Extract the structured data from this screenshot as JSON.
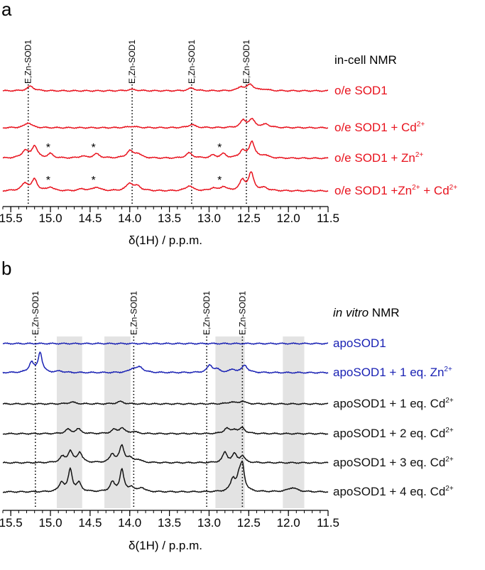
{
  "chart_data": [
    {
      "panel": "a",
      "type": "line",
      "title": "in-cell NMR",
      "xlabel": "δ(1H) / p.p.m.",
      "xlim": [
        15.6,
        11.5
      ],
      "xticks": [
        "15.5",
        "15.0",
        "14.5",
        "14.0",
        "13.5",
        "13.0",
        "12.5",
        "12.0",
        "11.5"
      ],
      "reference_label": "E,Zn-SOD1",
      "reference_lines": [
        15.28,
        13.97,
        13.22,
        12.53
      ],
      "asterisk_marker": "*",
      "asterisks": [
        {
          "trace": 2,
          "x": 15.02
        },
        {
          "trace": 2,
          "x": 14.45
        },
        {
          "trace": 2,
          "x": 12.86
        },
        {
          "trace": 3,
          "x": 15.02
        },
        {
          "trace": 3,
          "x": 14.45
        },
        {
          "trace": 3,
          "x": 12.86
        }
      ],
      "series": [
        {
          "name": "o/e SOD1",
          "label_main": "o/e SOD1",
          "label_tail": "",
          "ion1": "",
          "charge1": "",
          "ion2": "",
          "charge2": "",
          "color": "#e8121d",
          "peaks": [
            [
              15.25,
              0.5,
              0.05
            ],
            [
              13.97,
              0.15,
              0.07
            ],
            [
              13.22,
              0.3,
              0.05
            ],
            [
              12.6,
              0.4,
              0.04
            ],
            [
              12.48,
              0.7,
              0.05
            ],
            [
              12.3,
              0.15,
              0.05
            ]
          ]
        },
        {
          "name": "o/e SOD1 + Cd2+",
          "label_main": "o/e SOD1 + Cd",
          "label_tail": "",
          "ion1": "",
          "charge1": "2+",
          "ion2": "",
          "charge2": "",
          "color": "#e8121d",
          "peaks": [
            [
              15.28,
              0.55,
              0.05
            ],
            [
              13.97,
              0.15,
              0.07
            ],
            [
              13.22,
              0.35,
              0.05
            ],
            [
              12.57,
              0.75,
              0.04
            ],
            [
              12.46,
              0.85,
              0.05
            ],
            [
              12.28,
              0.35,
              0.05
            ]
          ]
        },
        {
          "name": "o/e SOD1 + Zn2+",
          "label_main": "o/e SOD1 + Zn",
          "label_tail": "",
          "ion1": "",
          "charge1": "2+",
          "ion2": "",
          "charge2": "",
          "color": "#e8121d",
          "peaks": [
            [
              15.32,
              0.8,
              0.05
            ],
            [
              15.2,
              1.3,
              0.04
            ],
            [
              15.0,
              0.45,
              0.04
            ],
            [
              14.6,
              0.2,
              0.05
            ],
            [
              14.42,
              0.45,
              0.05
            ],
            [
              14.0,
              0.75,
              0.05
            ],
            [
              13.9,
              0.45,
              0.05
            ],
            [
              13.25,
              0.55,
              0.05
            ],
            [
              12.95,
              0.3,
              0.04
            ],
            [
              12.82,
              0.45,
              0.04
            ],
            [
              12.58,
              0.8,
              0.04
            ],
            [
              12.46,
              1.8,
              0.04
            ],
            [
              12.3,
              0.3,
              0.05
            ]
          ]
        },
        {
          "name": "o/e SOD1 +Zn2+ + Cd2+",
          "label_main": "o/e SOD1 +Zn",
          "label_tail": " + Cd",
          "ion1": "",
          "charge1": "2+",
          "ion2": "",
          "charge2": "2+",
          "color": "#e8121d",
          "peaks": [
            [
              15.32,
              0.8,
              0.05
            ],
            [
              15.2,
              1.2,
              0.04
            ],
            [
              15.0,
              0.4,
              0.04
            ],
            [
              14.6,
              0.2,
              0.05
            ],
            [
              14.42,
              0.4,
              0.05
            ],
            [
              14.0,
              0.8,
              0.05
            ],
            [
              13.9,
              0.45,
              0.05
            ],
            [
              13.25,
              0.55,
              0.05
            ],
            [
              12.95,
              0.3,
              0.04
            ],
            [
              12.82,
              0.45,
              0.04
            ],
            [
              12.58,
              1.1,
              0.04
            ],
            [
              12.47,
              1.9,
              0.04
            ],
            [
              12.3,
              0.3,
              0.05
            ]
          ]
        }
      ]
    },
    {
      "panel": "b",
      "type": "line",
      "title": "in vitro NMR",
      "title_italic": "in vitro",
      "title_rest": " NMR",
      "xlabel": "δ(1H) / p.p.m.",
      "xlim": [
        15.6,
        11.5
      ],
      "xticks": [
        "15.5",
        "15.0",
        "14.5",
        "14.0",
        "13.5",
        "13.0",
        "12.5",
        "12.0",
        "11.5"
      ],
      "reference_label": "E,Zn-SOD1",
      "reference_lines": [
        15.19,
        13.95,
        13.03,
        12.58
      ],
      "shaded_regions": [
        [
          14.92,
          14.6
        ],
        [
          14.32,
          13.99
        ],
        [
          12.92,
          12.55
        ],
        [
          12.07,
          11.8
        ]
      ],
      "series": [
        {
          "name": "apoSOD1",
          "label_main": "apoSOD1",
          "label_tail": "",
          "ion1": "",
          "charge1": "",
          "ion2": "",
          "charge2": "",
          "color": "#1a22b4",
          "peaks": []
        },
        {
          "name": "apoSOD1 + 1 eq. Zn2+",
          "label_main": "apoSOD1 + 1 eq. Zn",
          "label_tail": "",
          "ion1": "",
          "charge1": "2+",
          "ion2": "",
          "charge2": "",
          "color": "#1a22b4",
          "peaks": [
            [
              15.24,
              1.1,
              0.035
            ],
            [
              15.13,
              2.2,
              0.03
            ],
            [
              14.88,
              0.15,
              0.05
            ],
            [
              13.96,
              0.4,
              0.05
            ],
            [
              13.87,
              0.55,
              0.05
            ],
            [
              12.99,
              0.8,
              0.04
            ],
            [
              12.9,
              0.3,
              0.04
            ],
            [
              12.7,
              0.3,
              0.05
            ],
            [
              12.55,
              0.8,
              0.04
            ]
          ]
        },
        {
          "name": "apoSOD1 + 1 eq. Cd2+",
          "label_main": "apoSOD1 + 1 eq. Cd",
          "label_tail": "",
          "ion1": "",
          "charge1": "2+",
          "ion2": "",
          "charge2": "",
          "color": "#111111",
          "peaks": [
            [
              14.73,
              0.2,
              0.05
            ],
            [
              14.12,
              0.25,
              0.05
            ],
            [
              12.72,
              0.2,
              0.05
            ],
            [
              12.58,
              0.3,
              0.04
            ]
          ]
        },
        {
          "name": "apoSOD1 + 2 eq. Cd2+",
          "label_main": "apoSOD1 + 2 eq. Cd",
          "label_tail": "",
          "ion1": "",
          "charge1": "2+",
          "ion2": "",
          "charge2": "",
          "color": "#111111",
          "peaks": [
            [
              14.78,
              0.45,
              0.04
            ],
            [
              14.65,
              0.5,
              0.04
            ],
            [
              14.2,
              0.4,
              0.04
            ],
            [
              14.1,
              0.6,
              0.04
            ],
            [
              13.95,
              0.2,
              0.05
            ],
            [
              12.78,
              0.55,
              0.04
            ],
            [
              12.68,
              0.4,
              0.04
            ],
            [
              12.58,
              0.6,
              0.04
            ]
          ]
        },
        {
          "name": "apoSOD1 + 3 eq. Cd2+",
          "label_main": "apoSOD1 + 3 eq. Cd",
          "label_tail": "",
          "ion1": "",
          "charge1": "2+",
          "ion2": "",
          "charge2": "",
          "color": "#111111",
          "peaks": [
            [
              14.85,
              0.6,
              0.04
            ],
            [
              14.75,
              1.2,
              0.035
            ],
            [
              14.63,
              1.1,
              0.035
            ],
            [
              14.22,
              0.9,
              0.035
            ],
            [
              14.1,
              1.8,
              0.035
            ],
            [
              14.0,
              0.4,
              0.04
            ],
            [
              13.9,
              0.3,
              0.05
            ],
            [
              12.8,
              1.1,
              0.035
            ],
            [
              12.68,
              0.9,
              0.035
            ],
            [
              12.58,
              0.7,
              0.035
            ]
          ]
        },
        {
          "name": "apoSOD1 + 4 eq. Cd2+",
          "label_main": "apoSOD1 + 4 eq. Cd",
          "label_tail": "",
          "ion1": "",
          "charge1": "2+",
          "ion2": "",
          "charge2": "",
          "color": "#111111",
          "peaks": [
            [
              14.86,
              1.0,
              0.035
            ],
            [
              14.75,
              2.4,
              0.03
            ],
            [
              14.64,
              0.9,
              0.035
            ],
            [
              14.22,
              1.0,
              0.035
            ],
            [
              14.1,
              2.4,
              0.03
            ],
            [
              13.98,
              0.5,
              0.035
            ],
            [
              13.85,
              0.45,
              0.04
            ],
            [
              12.7,
              1.3,
              0.035
            ],
            [
              12.62,
              1.4,
              0.035
            ],
            [
              12.58,
              2.6,
              0.03
            ],
            [
              11.95,
              0.45,
              0.07
            ]
          ]
        }
      ]
    }
  ]
}
